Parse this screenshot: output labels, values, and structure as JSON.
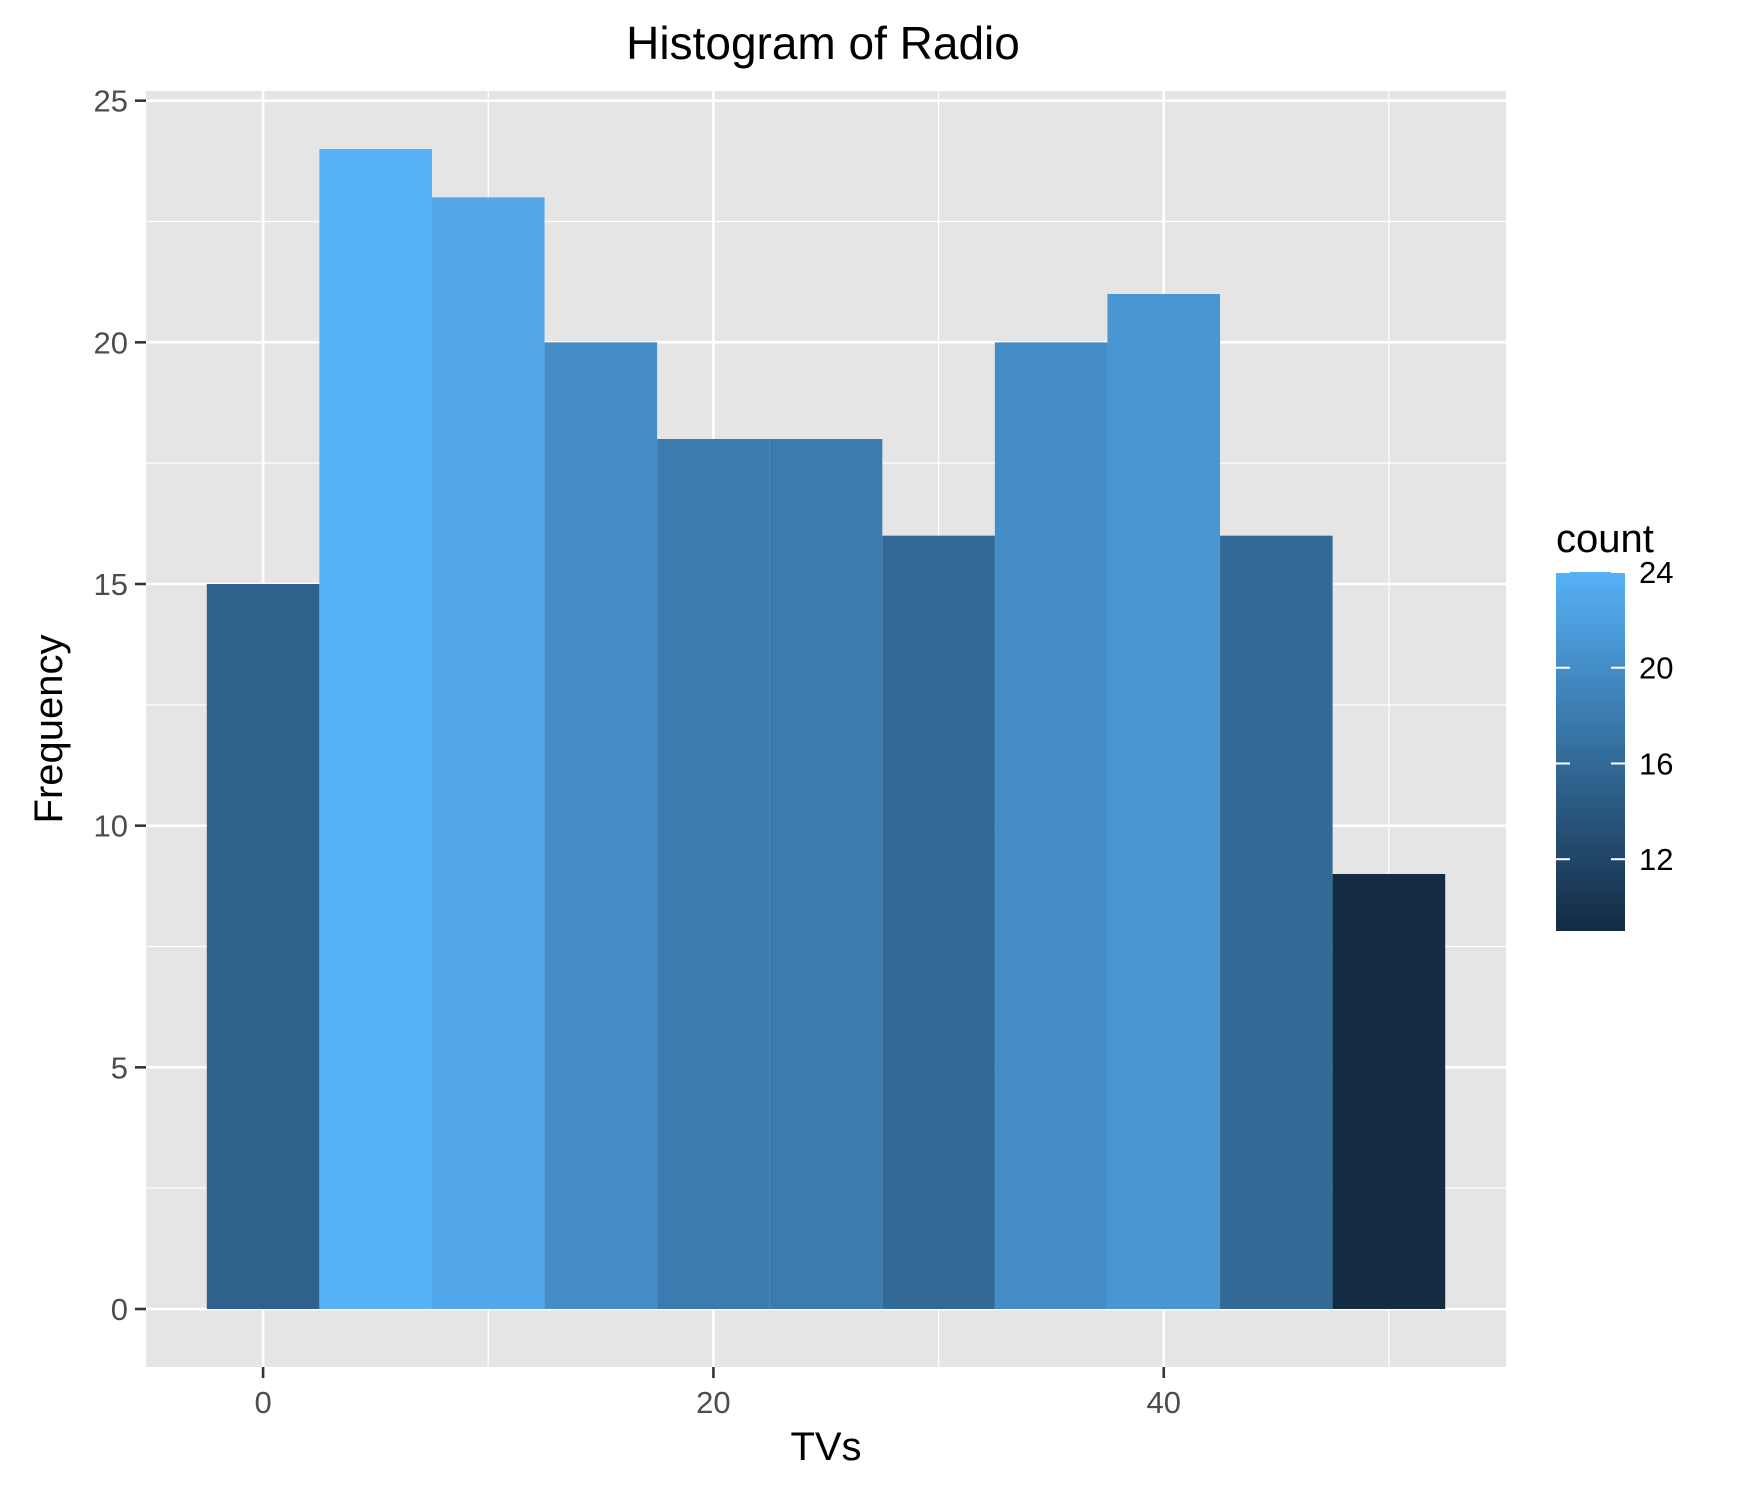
{
  "chart_data": {
    "type": "bar",
    "title": "Histogram of Radio",
    "xlabel": "TVs",
    "ylabel": "Frequency",
    "bin_width": 5,
    "bins": [
      {
        "center": 0,
        "count": 15
      },
      {
        "center": 5,
        "count": 24
      },
      {
        "center": 10,
        "count": 23
      },
      {
        "center": 15,
        "count": 20
      },
      {
        "center": 20,
        "count": 18
      },
      {
        "center": 25,
        "count": 18
      },
      {
        "center": 30,
        "count": 16
      },
      {
        "center": 35,
        "count": 20
      },
      {
        "center": 40,
        "count": 21
      },
      {
        "center": 45,
        "count": 16
      },
      {
        "center": 50,
        "count": 9
      }
    ],
    "xlim": [
      -5.2,
      55.2
    ],
    "ylim": [
      -1.2,
      25.2
    ],
    "x_ticks": [
      0,
      20,
      40
    ],
    "x_minor_ticks": [
      10,
      30,
      50
    ],
    "y_ticks": [
      0,
      5,
      10,
      15,
      20,
      25
    ],
    "grid": true,
    "legend": {
      "title": "count",
      "position": "right",
      "range": [
        9,
        24
      ],
      "ticks": [
        24,
        20,
        16,
        12
      ],
      "color_low": "#132B43",
      "color_high": "#56B1F7"
    },
    "colors": {
      "panel_background": "#E5E5E5",
      "grid": "#FFFFFF"
    }
  }
}
